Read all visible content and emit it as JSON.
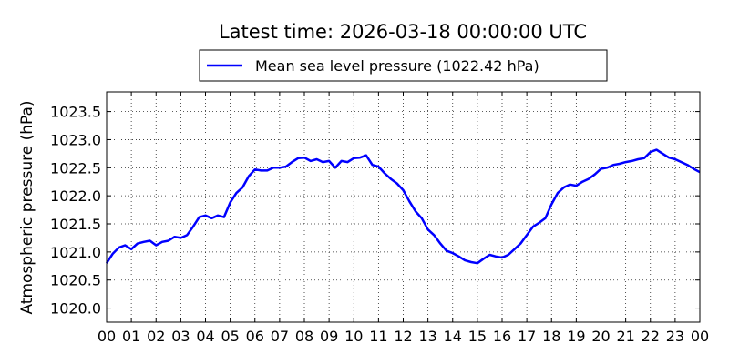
{
  "chart_data": {
    "type": "line",
    "title": "Latest time: 2026-03-18 00:00:00 UTC",
    "ylabel": "Atmospheric pressure (hPa)",
    "xlabel": "",
    "xlim": [
      0,
      24
    ],
    "ylim": [
      1019.75,
      1023.85
    ],
    "grid": true,
    "legend_position": "top-center",
    "x_ticks": [
      0,
      1,
      2,
      3,
      4,
      5,
      6,
      7,
      8,
      9,
      10,
      11,
      12,
      13,
      14,
      15,
      16,
      17,
      18,
      19,
      20,
      21,
      22,
      23,
      24
    ],
    "x_tick_labels": [
      "00",
      "01",
      "02",
      "03",
      "04",
      "05",
      "06",
      "07",
      "08",
      "09",
      "10",
      "11",
      "12",
      "13",
      "14",
      "15",
      "16",
      "17",
      "18",
      "19",
      "20",
      "21",
      "22",
      "23",
      "00"
    ],
    "y_ticks": [
      1020.0,
      1020.5,
      1021.0,
      1021.5,
      1022.0,
      1022.5,
      1023.0,
      1023.5
    ],
    "y_tick_labels": [
      "1020.0",
      "1020.5",
      "1021.0",
      "1021.5",
      "1022.0",
      "1022.5",
      "1023.0",
      "1023.5"
    ],
    "series": [
      {
        "name": "Mean sea level pressure (1022.42 hPa)",
        "color": "#0000ff",
        "x": [
          0.0,
          0.25,
          0.5,
          0.75,
          1.0,
          1.25,
          1.5,
          1.75,
          2.0,
          2.25,
          2.5,
          2.75,
          3.0,
          3.25,
          3.5,
          3.75,
          4.0,
          4.25,
          4.5,
          4.75,
          5.0,
          5.25,
          5.5,
          5.75,
          6.0,
          6.25,
          6.5,
          6.75,
          7.0,
          7.25,
          7.5,
          7.75,
          8.0,
          8.25,
          8.5,
          8.75,
          9.0,
          9.25,
          9.5,
          9.75,
          10.0,
          10.25,
          10.5,
          10.75,
          11.0,
          11.25,
          11.5,
          11.75,
          12.0,
          12.25,
          12.5,
          12.75,
          13.0,
          13.25,
          13.5,
          13.75,
          14.0,
          14.25,
          14.5,
          14.75,
          15.0,
          15.25,
          15.5,
          15.75,
          16.0,
          16.25,
          16.5,
          16.75,
          17.0,
          17.25,
          17.5,
          17.75,
          18.0,
          18.25,
          18.5,
          18.75,
          19.0,
          19.25,
          19.5,
          19.75,
          20.0,
          20.25,
          20.5,
          20.75,
          21.0,
          21.25,
          21.5,
          21.75,
          22.0,
          22.25,
          22.5,
          22.75,
          23.0,
          23.25,
          23.5,
          23.75,
          24.0
        ],
        "y": [
          1020.8,
          1020.97,
          1021.08,
          1021.12,
          1021.05,
          1021.15,
          1021.18,
          1021.2,
          1021.12,
          1021.18,
          1021.2,
          1021.27,
          1021.25,
          1021.3,
          1021.45,
          1021.62,
          1021.65,
          1021.6,
          1021.65,
          1021.62,
          1021.88,
          1022.05,
          1022.15,
          1022.35,
          1022.47,
          1022.45,
          1022.45,
          1022.5,
          1022.5,
          1022.52,
          1022.6,
          1022.67,
          1022.68,
          1022.62,
          1022.65,
          1022.6,
          1022.62,
          1022.5,
          1022.62,
          1022.6,
          1022.67,
          1022.68,
          1022.72,
          1022.55,
          1022.52,
          1022.4,
          1022.3,
          1022.22,
          1022.1,
          1021.9,
          1021.72,
          1021.6,
          1021.4,
          1021.3,
          1021.15,
          1021.02,
          1020.98,
          1020.92,
          1020.85,
          1020.82,
          1020.8,
          1020.88,
          1020.95,
          1020.92,
          1020.9,
          1020.95,
          1021.05,
          1021.15,
          1021.3,
          1021.45,
          1021.52,
          1021.6,
          1021.85,
          1022.05,
          1022.15,
          1022.2,
          1022.18,
          1022.25,
          1022.3,
          1022.38,
          1022.48,
          1022.5,
          1022.55,
          1022.57,
          1022.6,
          1022.62,
          1022.65,
          1022.67,
          1022.78,
          1022.82,
          1022.75,
          1022.68,
          1022.65,
          1022.6,
          1022.55,
          1022.48,
          1022.42
        ]
      }
    ]
  }
}
